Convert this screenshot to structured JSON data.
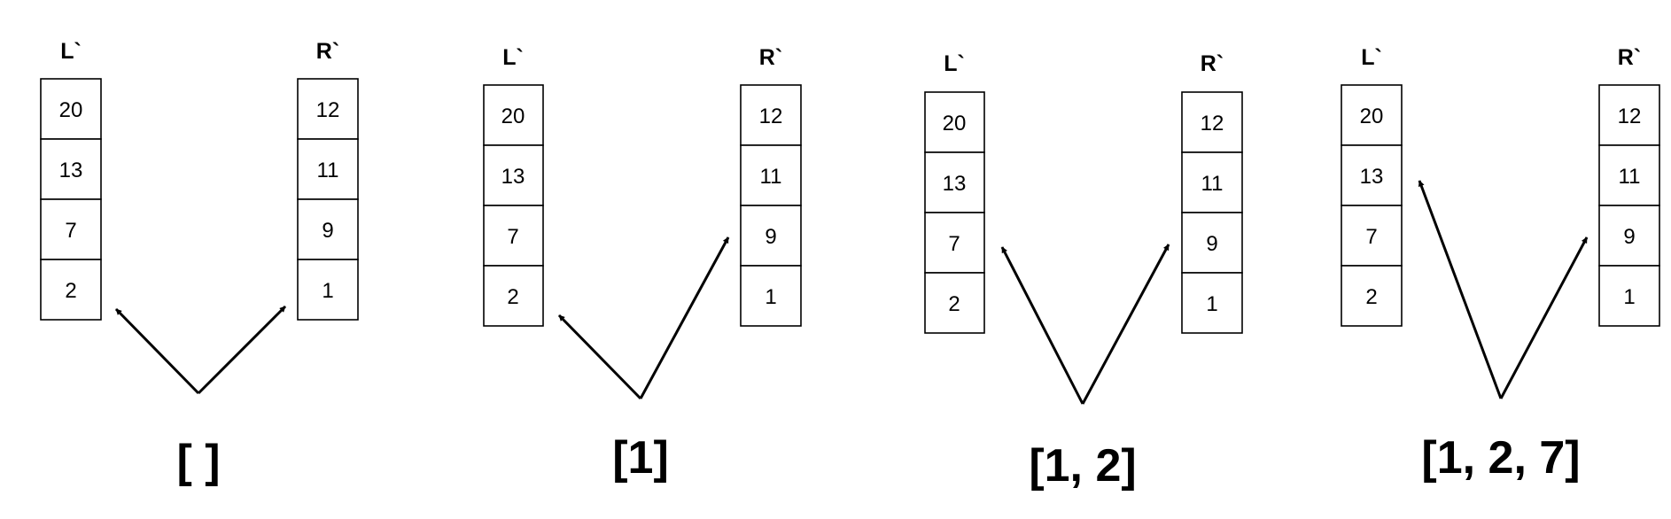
{
  "panels": [
    {
      "left": {
        "label": "L`",
        "values": [
          "20",
          "13",
          "7",
          "2"
        ]
      },
      "right": {
        "label": "R`",
        "values": [
          "12",
          "11",
          "9",
          "1"
        ]
      },
      "result": "[ ]"
    },
    {
      "left": {
        "label": "L`",
        "values": [
          "20",
          "13",
          "7",
          "2"
        ]
      },
      "right": {
        "label": "R`",
        "values": [
          "12",
          "11",
          "9",
          "1"
        ]
      },
      "result": "[1]"
    },
    {
      "left": {
        "label": "L`",
        "values": [
          "20",
          "13",
          "7",
          "2"
        ]
      },
      "right": {
        "label": "R`",
        "values": [
          "12",
          "11",
          "9",
          "1"
        ]
      },
      "result": "[1, 2]"
    },
    {
      "left": {
        "label": "L`",
        "values": [
          "20",
          "13",
          "7",
          "2"
        ]
      },
      "right": {
        "label": "R`",
        "values": [
          "12",
          "11",
          "9",
          "1"
        ]
      },
      "result": "[1, 2, 7]"
    }
  ]
}
